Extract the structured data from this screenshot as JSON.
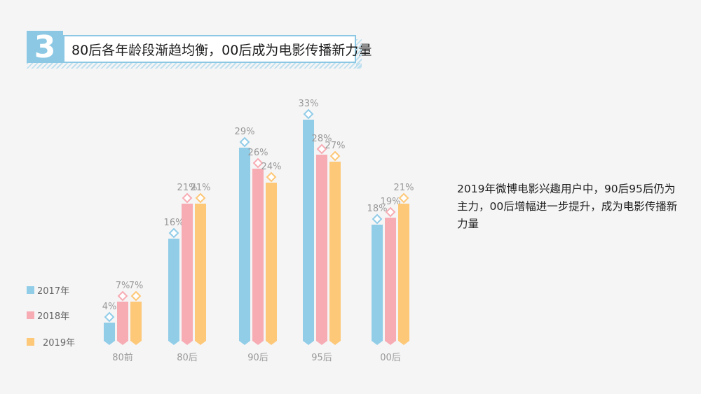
{
  "header": {
    "number": "3",
    "title": "80后各年龄段渐趋均衡，00后成为电影传播新力量"
  },
  "description": "2019年微博电影兴趣用户中，90后95后仍为主力，00后增幅进一步提升，成为电影传播新力量",
  "chart_data": {
    "type": "bar",
    "categories": [
      "80前",
      "80后",
      "90后",
      "95后",
      "00后"
    ],
    "series": [
      {
        "name": "2017年",
        "values": [
          4,
          16,
          29,
          33,
          18
        ],
        "labels": [
          "4%",
          "16%",
          "29%",
          "33%",
          "18%"
        ],
        "color": "#92cde8"
      },
      {
        "name": "2018年",
        "values": [
          7,
          21,
          26,
          28,
          19
        ],
        "labels": [
          "7%",
          "21%",
          "26%",
          "28%",
          "19%"
        ],
        "color": "#f7acb4"
      },
      {
        "name": "2019年",
        "values": [
          7,
          21,
          24,
          27,
          21
        ],
        "labels": [
          "7%",
          "21%",
          "24%",
          "27%",
          "21%"
        ],
        "color": "#fdc878"
      }
    ],
    "label_color": "#999999"
  }
}
